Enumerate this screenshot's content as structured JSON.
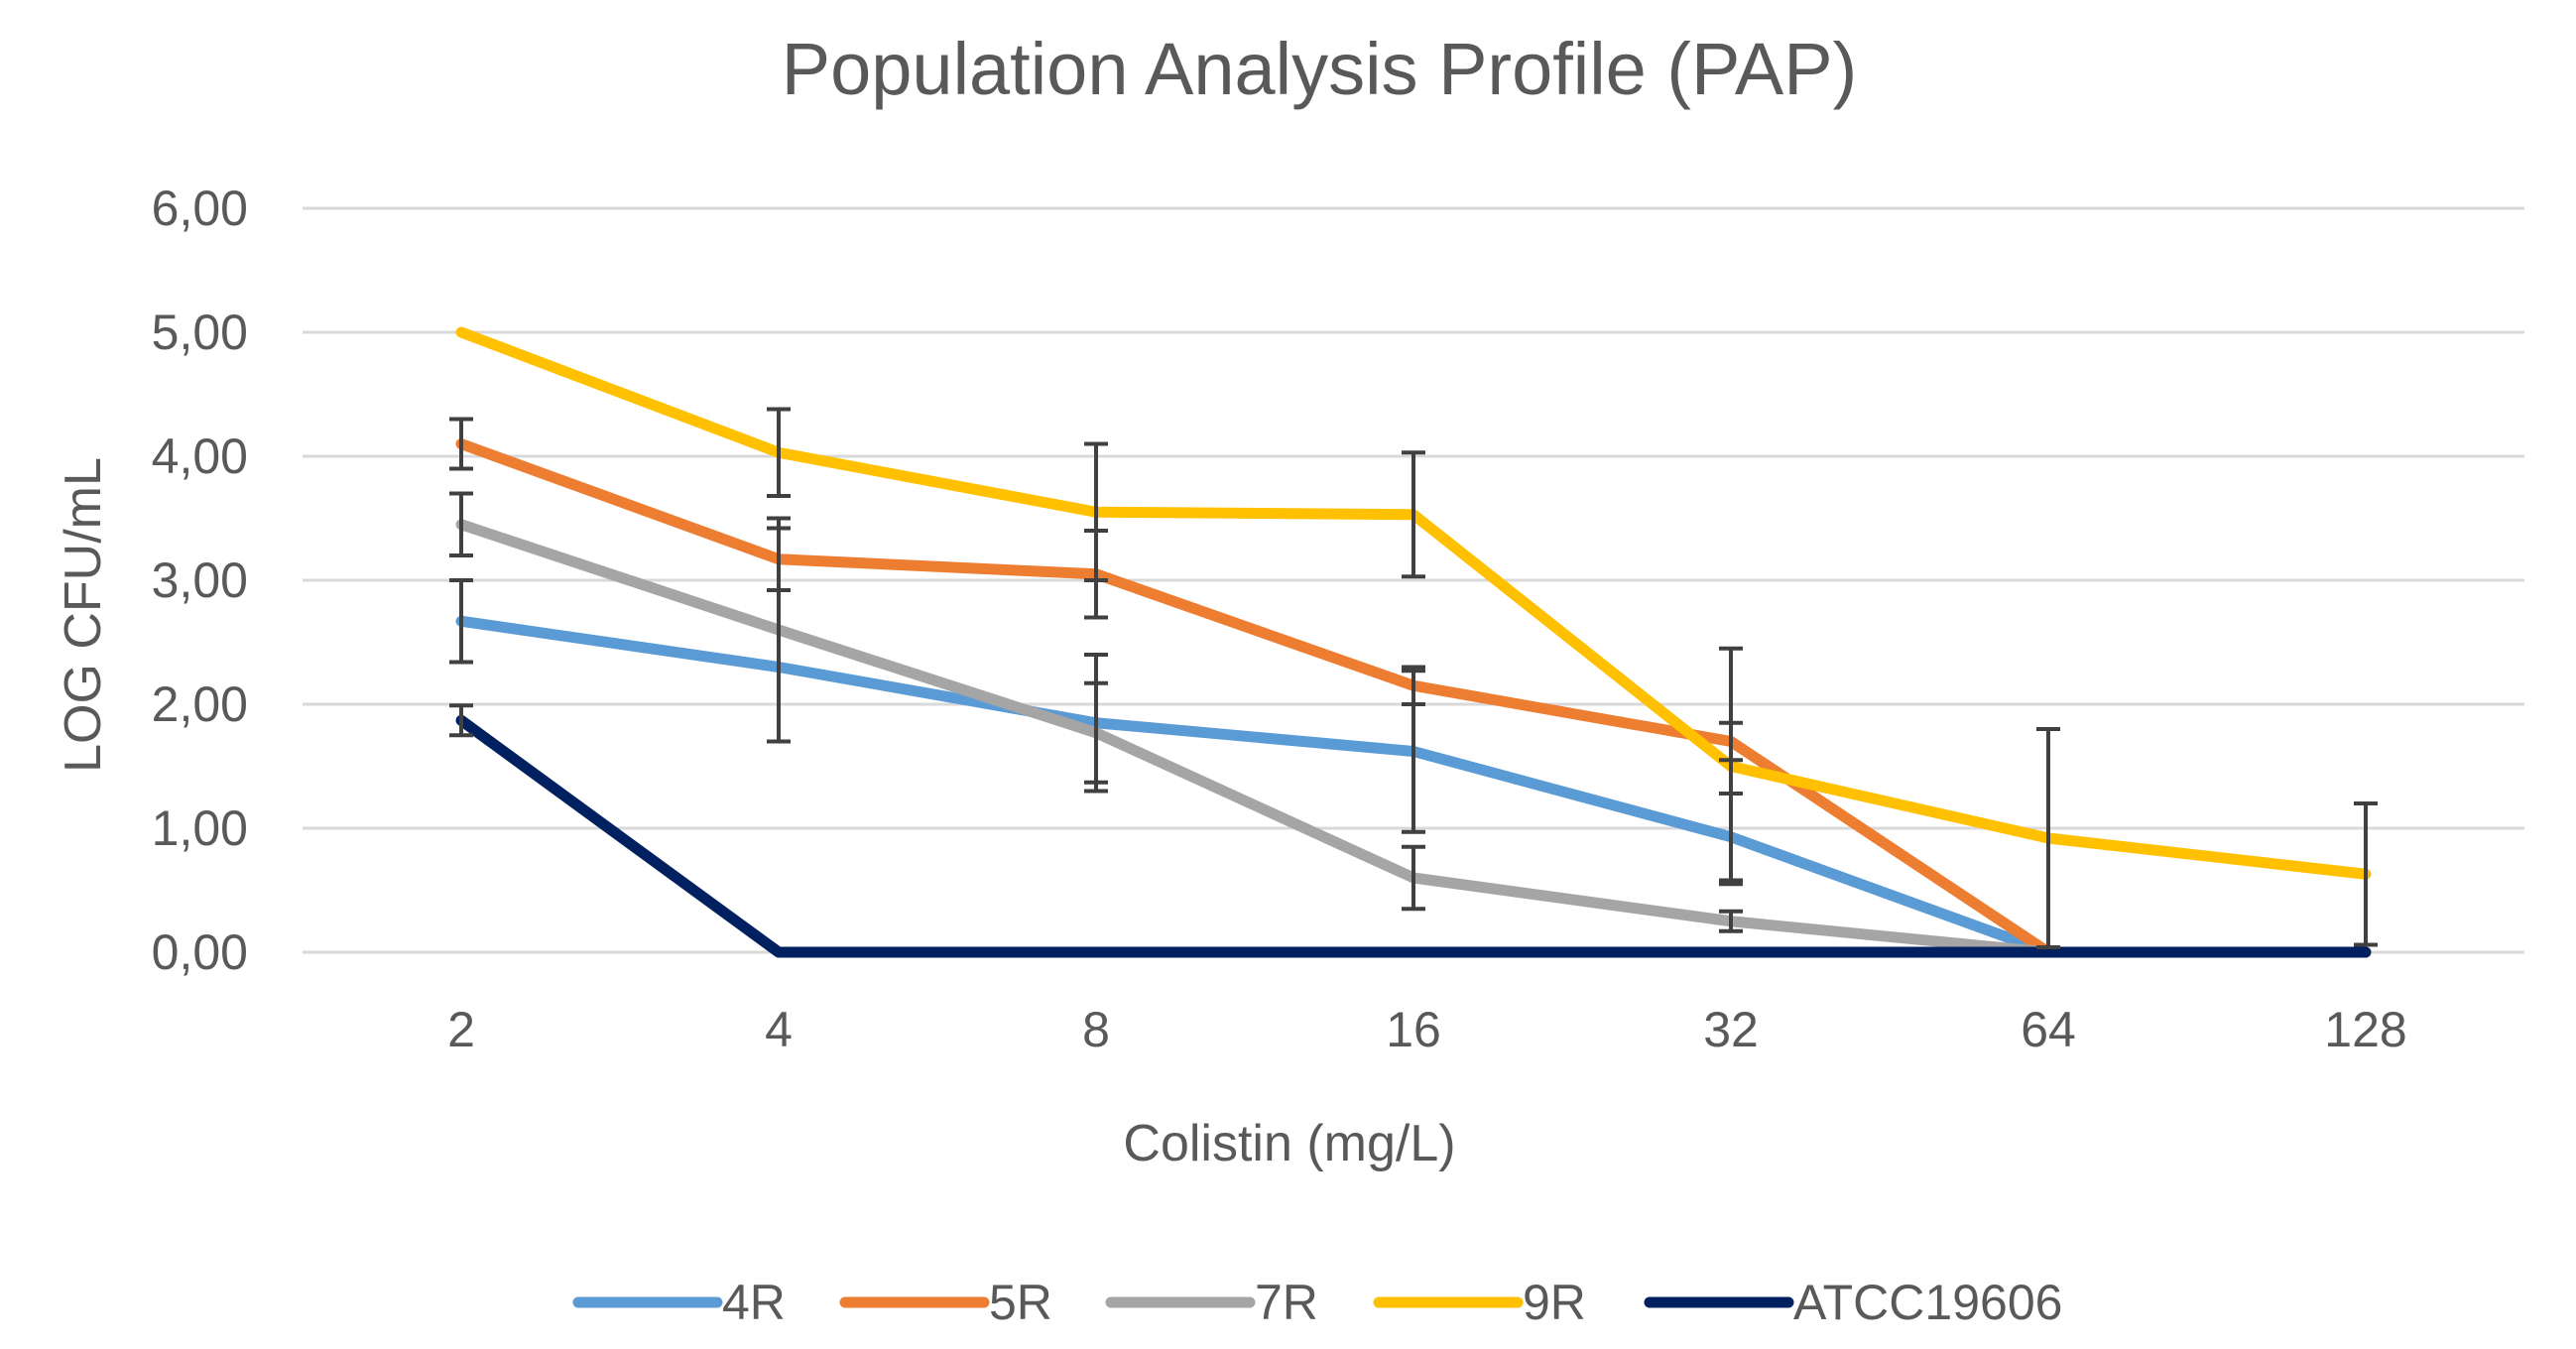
{
  "chart_data": {
    "type": "line",
    "title": "Population Analysis Profile (PAP)",
    "xlabel": "Colistin (mg/L)",
    "ylabel": "LOG CFU/mL",
    "categories": [
      "2",
      "4",
      "8",
      "16",
      "32",
      "64",
      "128"
    ],
    "ylim": [
      0,
      6
    ],
    "yticks": [
      "0,00",
      "1,00",
      "2,00",
      "3,00",
      "4,00",
      "5,00",
      "6,00"
    ],
    "grid": true,
    "legend_position": "bottom",
    "series": [
      {
        "name": "4R",
        "color": "#5B9BD5",
        "values": [
          2.67,
          2.3,
          1.85,
          1.62,
          0.93,
          0.0,
          null
        ],
        "errors": [
          0.33,
          null,
          0.55,
          0.65,
          0.35,
          null,
          null
        ]
      },
      {
        "name": "5R",
        "color": "#ED7D31",
        "values": [
          4.1,
          3.17,
          3.05,
          2.15,
          1.7,
          0.0,
          null
        ],
        "errors": [
          0.2,
          0.25,
          0.35,
          0.15,
          0.15,
          null,
          null
        ]
      },
      {
        "name": "7R",
        "color": "#A5A5A5",
        "values": [
          3.45,
          2.6,
          1.77,
          0.6,
          0.25,
          0.0,
          null
        ],
        "errors": [
          0.25,
          0.9,
          0.4,
          0.25,
          0.08,
          null,
          null
        ]
      },
      {
        "name": "9R",
        "color": "#FFC000",
        "values": [
          5.0,
          4.03,
          3.55,
          3.53,
          1.5,
          0.92,
          0.63
        ],
        "errors": [
          null,
          0.35,
          0.55,
          0.5,
          0.95,
          0.88,
          0.57
        ]
      },
      {
        "name": "ATCC19606",
        "color": "#002060",
        "values": [
          1.87,
          0.0,
          0.0,
          0.0,
          0.0,
          0.0,
          0.0
        ],
        "errors": [
          0.12,
          null,
          null,
          null,
          null,
          null,
          null
        ]
      }
    ]
  }
}
